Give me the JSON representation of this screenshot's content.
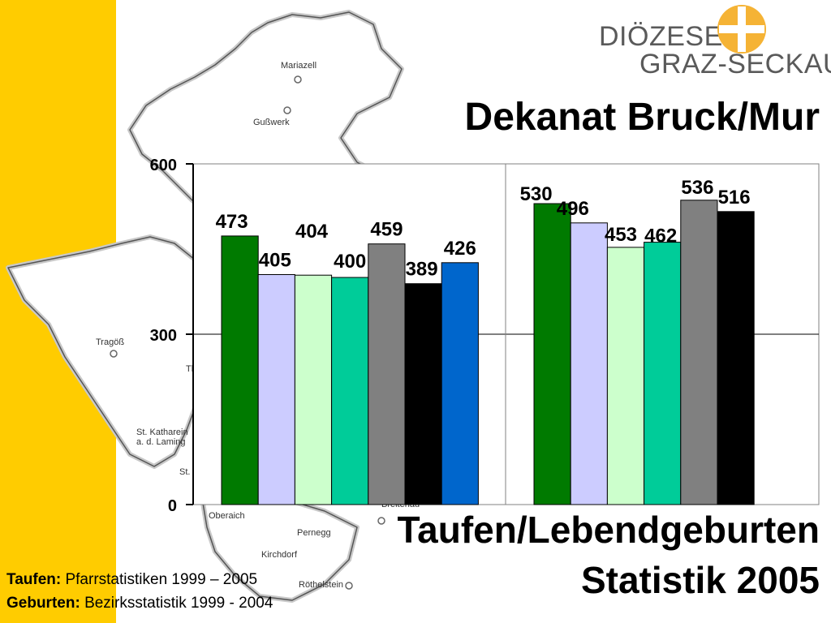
{
  "logo": {
    "line1": "DIÖZESE",
    "line2": "GRAZ-SECKAU"
  },
  "title": "Dekanat Bruck/Mur",
  "subtitle": {
    "line1": "Taufen/Lebendgeburten",
    "line2": "Statistik 2005"
  },
  "sources": {
    "taufen_label": "Taufen:",
    "taufen_text": "Pfarrstatistiken 1999 – 2005",
    "geburten_label": "Geburten:",
    "geburten_text": "Bezirksstatistik 1999 - 2004"
  },
  "map_labels": {
    "mariazell": "Mariazell",
    "gusswerk": "Gußwerk",
    "tragoss": "Tragöß",
    "thoerl": "Thörl",
    "st_katharein_1": "St. Katharein",
    "st_katharein_2": "a. d. Laming",
    "st_dionysen": "St. Dion",
    "oberaich": "Oberaich",
    "breitenau": "Breitenau",
    "pernegg": "Pernegg",
    "kirchdorf": "Kirchdorf",
    "roethelstein": "Röthelstein"
  },
  "colors": {
    "band": "#FFCC00",
    "bar_dark_green": "#007A00",
    "bar_lavender": "#CCCCFF",
    "bar_pale_green": "#CCFFCC",
    "bar_teal": "#00CC99",
    "bar_gray": "#808080",
    "bar_black": "#000000",
    "bar_blue": "#0066CC",
    "logo_cross": "#F5B335",
    "logo_text": "#5A5A5A"
  },
  "chart_data": {
    "type": "bar",
    "ylim": [
      0,
      600
    ],
    "y_ticks": [
      0,
      300,
      600
    ],
    "grid": true,
    "groups": [
      {
        "values": [
          473,
          405,
          404,
          400,
          459,
          389,
          426
        ],
        "colors": [
          "#007A00",
          "#CCCCFF",
          "#CCFFCC",
          "#00CC99",
          "#808080",
          "#000000",
          "#0066CC"
        ]
      },
      {
        "values": [
          530,
          496,
          453,
          462,
          536,
          516
        ],
        "colors": [
          "#007A00",
          "#CCCCFF",
          "#CCFFCC",
          "#00CC99",
          "#808080",
          "#000000"
        ]
      }
    ]
  }
}
